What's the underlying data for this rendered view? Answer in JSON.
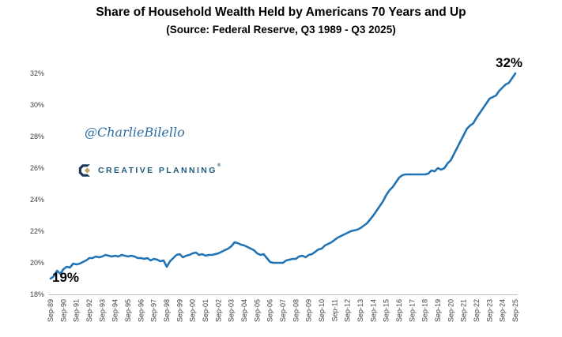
{
  "header": {
    "title": "Share of Household Wealth Held by Americans 70 Years and Up",
    "subtitle": "(Source: Federal Reserve, Q3 1989 - Q3 2025)"
  },
  "watermark": {
    "handle": "@CharlieBilello"
  },
  "brand": {
    "name": "CREATIVE PLANNING",
    "trademark": "®",
    "navy": "#1B3A5C",
    "gold": "#C2A36B",
    "text_color": "#1E5B7B"
  },
  "chart_data": {
    "type": "line",
    "title": "Share of Household Wealth Held by Americans 70 Years and Up",
    "subtitle": "(Source: Federal Reserve, Q3 1989 - Q3 2025)",
    "series_name": "Share of household wealth held by Americans 70 years and up (%)",
    "x_frequency": "quarterly (Q3 1989 - Q3 2025)",
    "x_labels": [
      "Sep-89",
      "Sep-90",
      "Sep-91",
      "Sep-92",
      "Sep-93",
      "Sep-94",
      "Sep-95",
      "Sep-96",
      "Sep-97",
      "Sep-98",
      "Sep-99",
      "Sep-00",
      "Sep-01",
      "Sep-02",
      "Sep-03",
      "Sep-04",
      "Sep-05",
      "Sep-06",
      "Sep-07",
      "Sep-08",
      "Sep-09",
      "Sep-10",
      "Sep-11",
      "Sep-12",
      "Sep-13",
      "Sep-14",
      "Sep-15",
      "Sep-16",
      "Sep-17",
      "Sep-18",
      "Sep-19",
      "Sep-20",
      "Sep-21",
      "Sep-22",
      "Sep-23",
      "Sep-24",
      "Sep-25"
    ],
    "values": [
      19.0,
      19.15,
      19.5,
      19.3,
      19.6,
      19.75,
      19.7,
      19.95,
      19.9,
      19.95,
      20.05,
      20.15,
      20.3,
      20.3,
      20.4,
      20.35,
      20.4,
      20.5,
      20.45,
      20.4,
      20.45,
      20.4,
      20.5,
      20.45,
      20.4,
      20.45,
      20.4,
      20.3,
      20.3,
      20.25,
      20.3,
      20.15,
      20.25,
      20.2,
      20.1,
      20.15,
      19.75,
      20.1,
      20.3,
      20.5,
      20.55,
      20.35,
      20.45,
      20.5,
      20.6,
      20.65,
      20.5,
      20.55,
      20.45,
      20.5,
      20.5,
      20.55,
      20.6,
      20.7,
      20.8,
      20.9,
      21.05,
      21.3,
      21.25,
      21.15,
      21.1,
      21.0,
      20.9,
      20.8,
      20.6,
      20.5,
      20.55,
      20.3,
      20.05,
      20.0,
      20.0,
      20.0,
      20.0,
      20.15,
      20.2,
      20.25,
      20.25,
      20.4,
      20.45,
      20.35,
      20.5,
      20.55,
      20.7,
      20.85,
      20.9,
      21.1,
      21.2,
      21.3,
      21.45,
      21.6,
      21.7,
      21.8,
      21.9,
      22.0,
      22.05,
      22.1,
      22.2,
      22.35,
      22.5,
      22.75,
      23.0,
      23.3,
      23.6,
      23.9,
      24.3,
      24.6,
      24.8,
      25.1,
      25.4,
      25.55,
      25.6,
      25.6,
      25.6,
      25.6,
      25.6,
      25.6,
      25.6,
      25.65,
      25.85,
      25.8,
      26.0,
      25.9,
      26.0,
      26.3,
      26.5,
      26.9,
      27.3,
      27.7,
      28.1,
      28.5,
      28.7,
      28.85,
      29.2,
      29.5,
      29.8,
      30.1,
      30.4,
      30.5,
      30.6,
      30.9,
      31.1,
      31.3,
      31.4,
      31.7,
      32.0
    ],
    "ylim": [
      18,
      32
    ],
    "y_ticks": [
      "18%",
      "20%",
      "22%",
      "24%",
      "26%",
      "28%",
      "30%",
      "32%"
    ],
    "grid": false,
    "legend": "none",
    "line_color": "#2173B4",
    "annotations": {
      "start": "19%",
      "end": "32%"
    }
  }
}
